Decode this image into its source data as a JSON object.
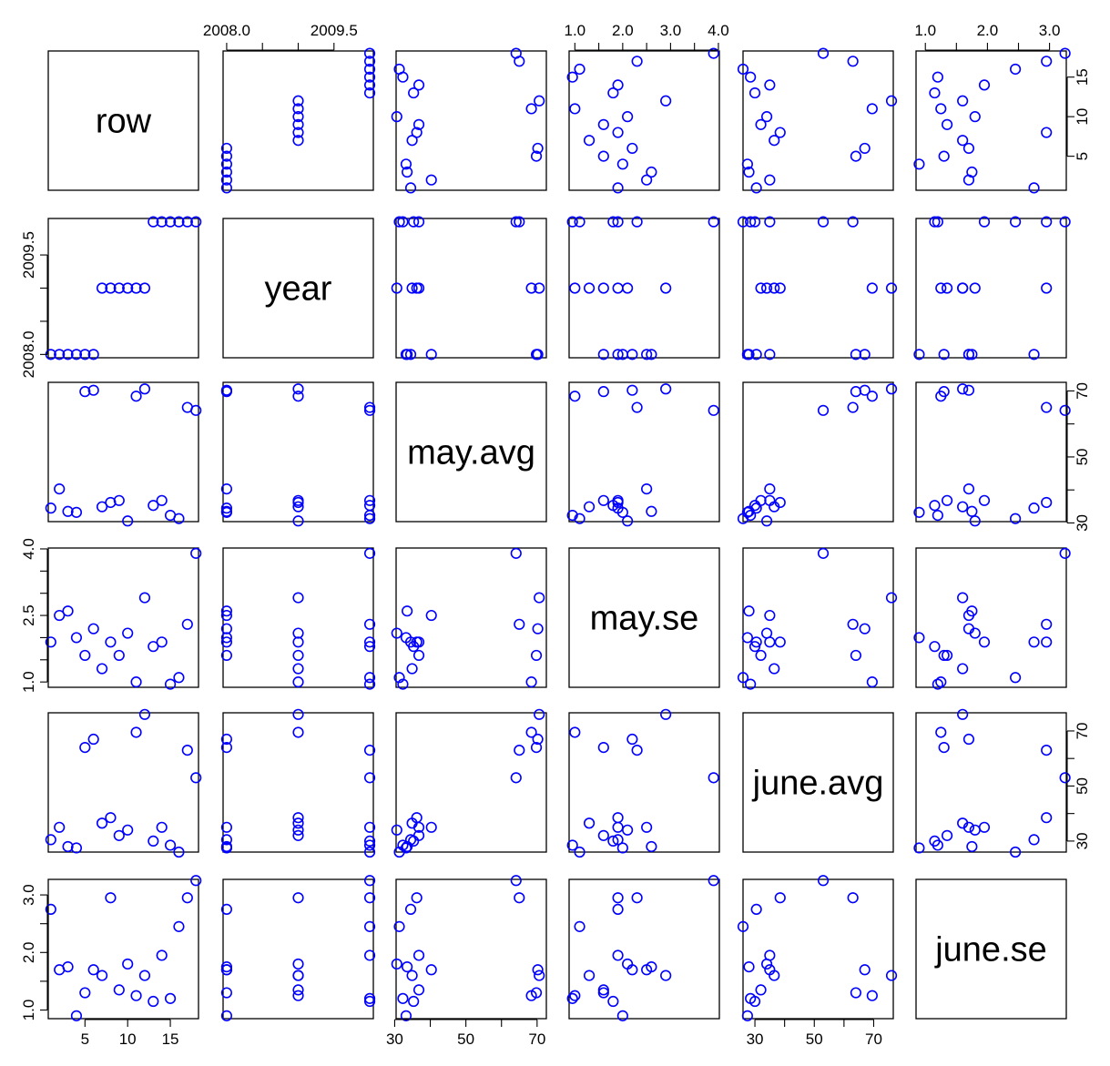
{
  "chart_data": {
    "type": "scatter",
    "variables": [
      "row",
      "year",
      "may.avg",
      "may.se",
      "june.avg",
      "june.se"
    ],
    "ticks": [
      [
        5,
        10,
        15
      ],
      [
        2008.0,
        2009.5
      ],
      [
        30,
        50,
        70
      ],
      [
        1.0,
        2.5,
        4.0
      ],
      [
        30,
        50,
        70
      ],
      [
        1.0,
        2.0,
        3.0
      ]
    ],
    "tick_labels": [
      [
        "5",
        "10",
        "15"
      ],
      [
        "2008.0",
        "2009.5"
      ],
      [
        "30",
        "50",
        "70"
      ],
      [
        "1.0",
        "2.5",
        "4.0"
      ],
      [
        "30",
        "50",
        "70"
      ],
      [
        "1.0",
        "2.0",
        "3.0"
      ]
    ],
    "minor_ticks": [
      [],
      [
        2008.0,
        2008.5,
        2009.0,
        2009.5
      ],
      [
        30,
        40,
        50,
        60,
        70
      ],
      [
        1.0,
        1.5,
        2.0,
        2.5,
        3.0,
        3.5,
        4.0
      ],
      [
        30,
        40,
        50,
        60,
        70
      ],
      [
        1.0,
        1.5,
        2.0,
        2.5,
        3.0
      ]
    ],
    "top_ticks": [
      [],
      [
        2008.0,
        2008.5,
        2009.0,
        2009.5
      ],
      [],
      [
        1.0,
        1.5,
        2.0,
        2.5,
        3.0,
        3.5,
        4.0
      ],
      [],
      [
        1.0,
        1.5,
        2.0,
        2.5,
        3.0
      ]
    ],
    "top_tick_labels": [
      [],
      [
        "2008.0",
        "",
        "",
        "2009.5"
      ],
      [],
      [
        "1.0",
        "",
        "2.0",
        "",
        "3.0",
        "",
        "4.0"
      ],
      [],
      [
        "1.0",
        "",
        "2.0",
        "",
        "3.0"
      ]
    ],
    "right_ticks": [
      [
        5,
        10,
        15
      ],
      [],
      [
        30,
        40,
        50,
        60,
        70
      ],
      [],
      [
        30,
        40,
        50,
        60,
        70
      ],
      []
    ],
    "right_tick_labels": [
      [
        "5",
        "10",
        "15"
      ],
      [],
      [
        "30",
        "",
        "50",
        "",
        "70"
      ],
      [],
      [
        "30",
        "",
        "50",
        "",
        "70"
      ],
      []
    ],
    "ranges": [
      [
        0.7,
        18.3
      ],
      [
        2007.95,
        2010.05
      ],
      [
        30.4,
        72.6
      ],
      [
        0.88,
        4.02
      ],
      [
        26.0,
        76.6
      ],
      [
        0.85,
        3.27
      ]
    ],
    "data": {
      "row": [
        1,
        2,
        3,
        4,
        5,
        6,
        7,
        8,
        9,
        10,
        11,
        12,
        13,
        14,
        15,
        16,
        17,
        18
      ],
      "year": [
        2008,
        2008,
        2008,
        2008,
        2008,
        2008,
        2009,
        2009,
        2009,
        2009,
        2009,
        2009,
        2010,
        2010,
        2010,
        2010,
        2010,
        2010
      ],
      "may.avg": [
        34.5,
        40.3,
        33.5,
        33.2,
        69.8,
        70.2,
        34.9,
        36.2,
        36.8,
        30.6,
        68.4,
        70.6,
        35.3,
        36.8,
        32.3,
        31.3,
        65.0,
        64.1
      ],
      "may.se": [
        1.9,
        2.5,
        2.6,
        2.0,
        1.6,
        2.2,
        1.3,
        1.9,
        1.6,
        2.1,
        1.0,
        2.9,
        1.8,
        1.9,
        0.95,
        1.1,
        2.3,
        3.9
      ],
      "june.avg": [
        30.5,
        35.0,
        28.0,
        27.5,
        64.0,
        67.0,
        36.5,
        38.5,
        32.0,
        34.0,
        69.5,
        76.0,
        30.0,
        35.0,
        28.5,
        26.0,
        63.0,
        53.0
      ],
      "june.se": [
        2.75,
        1.7,
        1.75,
        0.9,
        1.3,
        1.7,
        1.6,
        2.95,
        1.35,
        1.8,
        1.25,
        1.6,
        1.15,
        1.95,
        1.2,
        2.45,
        2.95,
        3.25
      ]
    },
    "point_color": "#0000ff"
  }
}
